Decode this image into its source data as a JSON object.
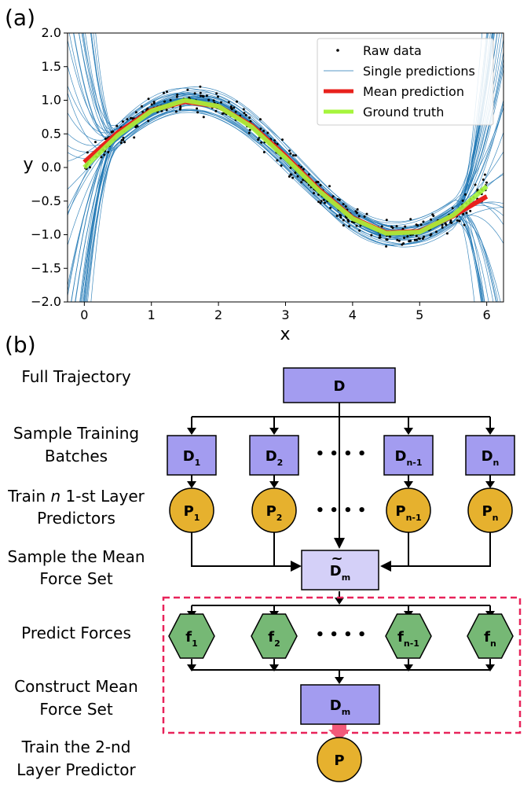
{
  "panel_a": {
    "label": "(a)",
    "chart_data": {
      "type": "scatter",
      "xlabel": "x",
      "ylabel": "y",
      "xlim": [
        -0.25,
        6.25
      ],
      "ylim": [
        -2.0,
        2.0
      ],
      "x_ticks": [
        0,
        1,
        2,
        3,
        4,
        5,
        6
      ],
      "y_ticks": [
        2.0,
        1.5,
        1.0,
        0.5,
        0.0,
        -0.5,
        -1.0,
        -1.5,
        -2.0
      ],
      "x_tick_labels": [
        "0",
        "1",
        "2",
        "3",
        "4",
        "5",
        "6"
      ],
      "y_tick_labels": [
        "2.0",
        "1.5",
        "1.0",
        "0.5",
        "0.0",
        "−0.5",
        "−1.0",
        "−1.5",
        "−2.0"
      ],
      "grid": false,
      "legend_position": "top-right",
      "series": [
        {
          "name": "Raw data",
          "kind": "points",
          "color": "#000000",
          "approx_function": "sin(x) + noise",
          "x_range": [
            0,
            6
          ],
          "approx_point_count": 400
        },
        {
          "name": "Single predictions",
          "kind": "lines",
          "color": "#1f77b4",
          "approx_line_count": 50
        },
        {
          "name": "Mean prediction",
          "kind": "line",
          "color": "#e8211c",
          "x": [
            0,
            0.5,
            1,
            1.5,
            2,
            2.5,
            3,
            3.5,
            4,
            4.5,
            5,
            5.5,
            6
          ],
          "y": [
            0.08,
            0.52,
            0.85,
            0.98,
            0.91,
            0.62,
            0.17,
            -0.33,
            -0.75,
            -0.97,
            -0.95,
            -0.72,
            -0.43
          ]
        },
        {
          "name": "Ground truth",
          "kind": "line",
          "color": "#a6f53c",
          "x": [
            0,
            0.5,
            1,
            1.5,
            2,
            2.5,
            3,
            3.5,
            4,
            4.5,
            5,
            5.5,
            6
          ],
          "y": [
            0.0,
            0.48,
            0.84,
            1.0,
            0.91,
            0.6,
            0.14,
            -0.35,
            -0.76,
            -0.98,
            -0.96,
            -0.71,
            -0.28
          ]
        }
      ]
    }
  },
  "panel_b": {
    "label": "(b)",
    "steps": [
      {
        "lines": [
          "Full Trajectory"
        ]
      },
      {
        "lines": [
          "Sample Training",
          "Batches"
        ]
      },
      {
        "lines_rich": [
          [
            "Train ",
            [
              "n",
              true
            ],
            " 1-st Layer"
          ],
          [
            "Predictors"
          ]
        ]
      },
      {
        "lines": [
          "Sample the Mean",
          "Force Set"
        ]
      },
      {
        "lines": [
          "Predict Forces"
        ]
      },
      {
        "lines": [
          "Construct Mean",
          "Force Set"
        ]
      },
      {
        "lines": [
          "Train the 2-nd",
          "Layer Predictor"
        ]
      }
    ],
    "nodes": {
      "full": {
        "main": "D",
        "sub": ""
      },
      "batches": [
        {
          "main": "D",
          "sub": "1"
        },
        {
          "main": "D",
          "sub": "2"
        },
        {
          "main": "D",
          "sub": "n-1"
        },
        {
          "main": "D",
          "sub": "n"
        }
      ],
      "predictors": [
        {
          "main": "P",
          "sub": "1"
        },
        {
          "main": "P",
          "sub": "2"
        },
        {
          "main": "P",
          "sub": "n-1"
        },
        {
          "main": "P",
          "sub": "n"
        }
      ],
      "sampled_mean": {
        "main": "D",
        "accent": "~",
        "sub": "m"
      },
      "forces": [
        {
          "main": "f",
          "sub": "1"
        },
        {
          "main": "f",
          "sub": "2"
        },
        {
          "main": "f",
          "sub": "n-1"
        },
        {
          "main": "f",
          "sub": "n"
        }
      ],
      "mean_force_set": {
        "main": "D",
        "sub": "m"
      },
      "final_predictor": {
        "main": "P",
        "sub": ""
      }
    },
    "ellipsis": "• • • •",
    "colors": {
      "box": "#a39cf0",
      "box_light": "#d4d0f8",
      "predictor": "#e6b12e",
      "force": "#76b875",
      "dashed": "#e8235a"
    }
  }
}
